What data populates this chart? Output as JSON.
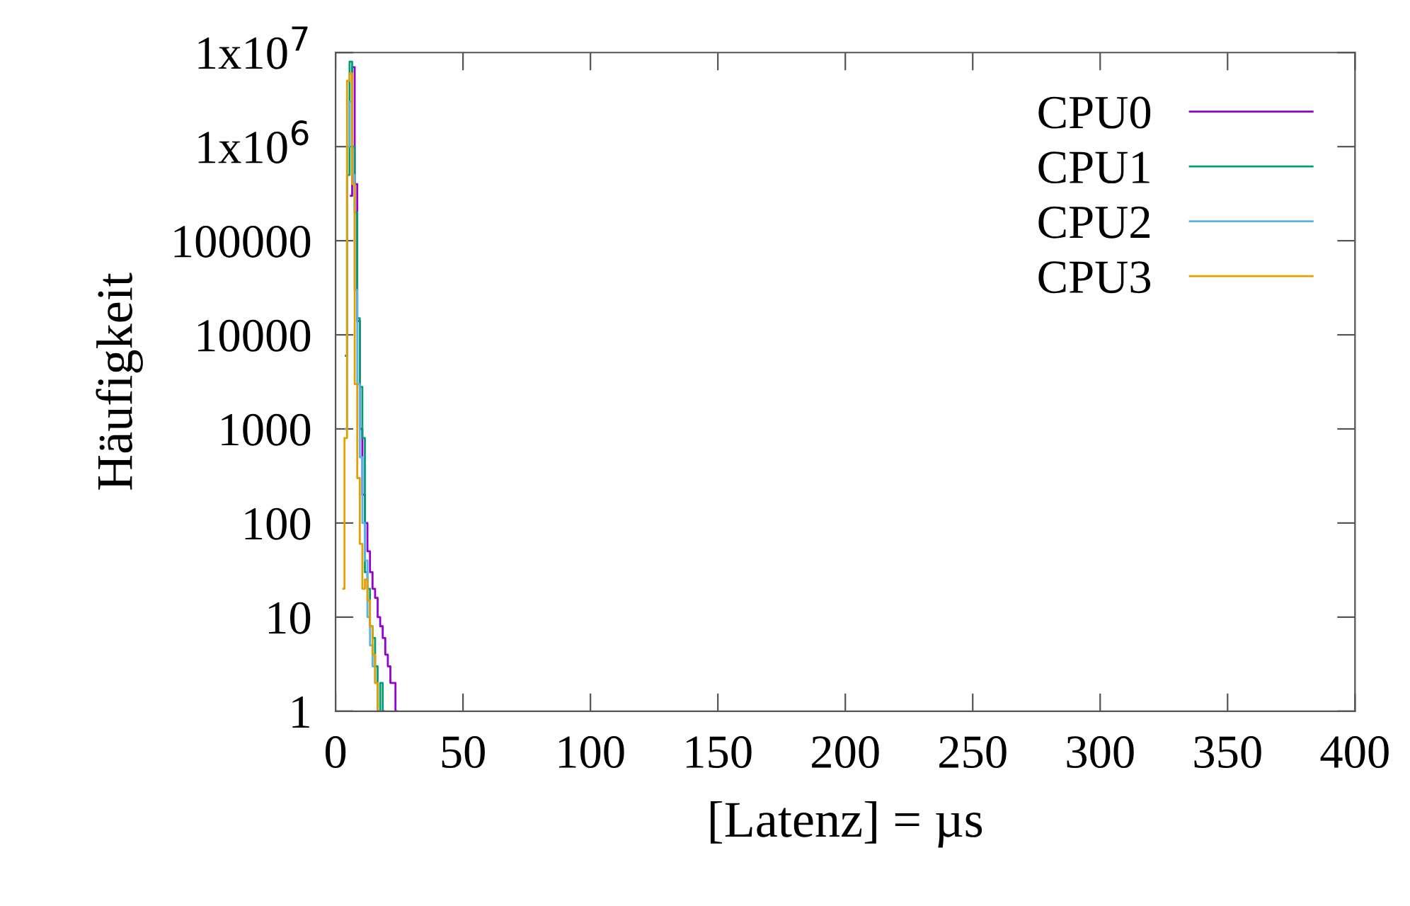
{
  "chart_data": {
    "type": "step",
    "xlabel": "[Latenz] = µs",
    "ylabel": "Häufigkeit",
    "xlim": [
      0,
      400
    ],
    "xticks": [
      0,
      50,
      100,
      150,
      200,
      250,
      300,
      350,
      400
    ],
    "ylim": [
      1,
      10000000
    ],
    "yticks": [
      1,
      10,
      100,
      1000,
      10000,
      100000,
      {
        "value": 1000000,
        "label": "1x10$^{6}$"
      },
      {
        "value": 10000000,
        "label": "1x10$^{7}$"
      }
    ],
    "log": "y",
    "grid": false,
    "legend": "top right",
    "marker": "none",
    "line_style": "solid",
    "series": [
      {
        "name": "CPU0",
        "color": "#9400d3",
        "x": [
          6,
          7,
          8,
          9,
          10,
          11,
          12,
          13,
          14,
          15,
          16,
          17,
          18,
          19,
          20,
          21,
          22,
          23,
          24
        ],
        "values": [
          300000,
          7000000,
          400000,
          14000,
          1000,
          200,
          100,
          50,
          30,
          20,
          16,
          10,
          8,
          6,
          4,
          3,
          2,
          2,
          1
        ]
      },
      {
        "name": "CPU1",
        "color": "#009e73",
        "x": [
          4,
          5,
          6,
          7,
          8,
          9,
          10,
          11,
          12,
          13,
          14,
          15,
          16,
          17,
          18,
          19
        ],
        "values": [
          6000,
          500000,
          8000000,
          1000000,
          200000,
          15000,
          2800,
          800,
          30,
          20,
          8,
          6,
          3,
          1,
          2,
          1
        ]
      },
      {
        "name": "CPU2",
        "color": "#56b4e9",
        "x": [
          4,
          5,
          6,
          7,
          8,
          9,
          10,
          11,
          12,
          13,
          14,
          15,
          16,
          17
        ],
        "values": [
          1000,
          1000000,
          3000000,
          500000,
          30000,
          3000,
          500,
          100,
          40,
          10,
          5,
          3,
          2,
          1
        ]
      },
      {
        "name": "CPU3",
        "color": "#e69f00",
        "x": [
          3,
          4,
          5,
          6,
          7,
          8,
          9,
          10,
          11,
          12,
          13,
          14,
          15,
          16,
          17
        ],
        "values": [
          20,
          800,
          5000000,
          6000000,
          400000,
          3000,
          300,
          60,
          20,
          25,
          15,
          8,
          4,
          2,
          1
        ]
      }
    ]
  }
}
